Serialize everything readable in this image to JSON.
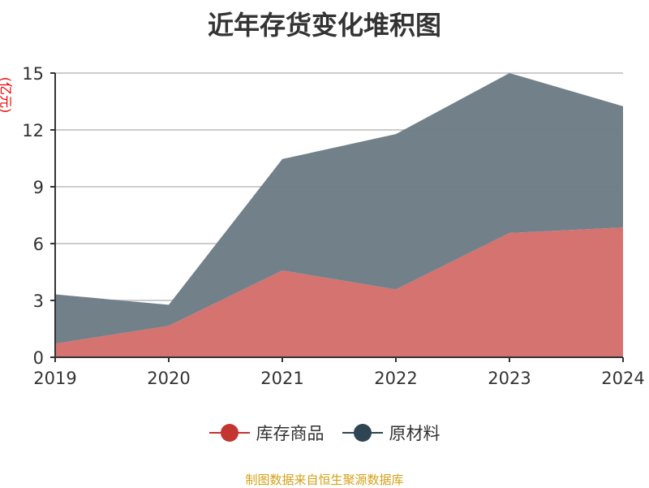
{
  "chart_data": {
    "type": "area",
    "stacked": true,
    "title": "近年存货变化堆积图",
    "ylabel": "(亿元)",
    "categories": [
      "2019",
      "2020",
      "2021",
      "2022",
      "2023",
      "2024"
    ],
    "ylim": [
      0,
      15
    ],
    "yticks": [
      0,
      3,
      6,
      9,
      12,
      15
    ],
    "grid": true,
    "legend_position": "bottom",
    "series": [
      {
        "name": "库存商品",
        "color": "#c23531",
        "fill": "#d4706d",
        "values": [
          0.72,
          1.66,
          4.58,
          3.58,
          6.56,
          6.85
        ]
      },
      {
        "name": "原材料",
        "color": "#2f4554",
        "fill": "#6f7d88",
        "values": [
          2.6,
          1.11,
          5.88,
          8.2,
          8.44,
          6.4
        ]
      }
    ]
  },
  "source": "制图数据来自恒生聚源数据库"
}
